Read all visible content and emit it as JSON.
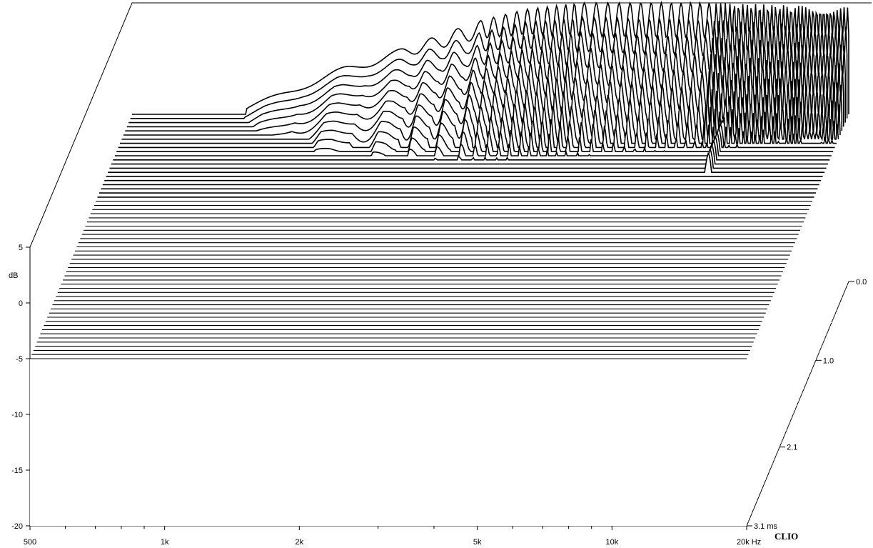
{
  "chart_data": {
    "type": "area",
    "subtype": "waterfall",
    "brand": "CLIO",
    "z_axis": {
      "label": "dB",
      "ylim": [
        -20,
        5
      ],
      "ticks": [
        {
          "value": 5,
          "label": "5"
        },
        {
          "value": 0,
          "label": "0"
        },
        {
          "value": -5,
          "label": "-5"
        },
        {
          "value": -10,
          "label": "-10"
        },
        {
          "value": -15,
          "label": "-15"
        },
        {
          "value": -20,
          "label": "-20"
        }
      ]
    },
    "x_axis": {
      "scale": "log",
      "range_hz": [
        500,
        20000
      ],
      "ticks": [
        {
          "value": 500,
          "label": "500"
        },
        {
          "value": 1000,
          "label": "1k"
        },
        {
          "value": 2000,
          "label": "2k"
        },
        {
          "value": 5000,
          "label": "5k"
        },
        {
          "value": 10000,
          "label": "10k"
        },
        {
          "value": 20000,
          "label": "20k Hz"
        }
      ],
      "minor_ticks": [
        600,
        700,
        800,
        900,
        3000,
        4000,
        6000,
        7000,
        8000,
        9000
      ]
    },
    "time_axis": {
      "range_ms": [
        0.0,
        3.1
      ],
      "ticks": [
        {
          "value": 0.0,
          "label": "0.0"
        },
        {
          "value": 1.0,
          "label": "1.0"
        },
        {
          "value": 2.1,
          "label": "2.1"
        },
        {
          "value": 3.1,
          "label": "3.1  ms"
        }
      ]
    },
    "slices": 60,
    "lower_cut_hz": 900,
    "floor_db": -5,
    "decay_model": {
      "envelope": [
        [
          900,
          -4.5
        ],
        [
          1200,
          -2.5
        ],
        [
          1500,
          -1
        ],
        [
          2000,
          0.5
        ],
        [
          3000,
          2.6
        ],
        [
          3800,
          3.3
        ],
        [
          5000,
          3.5
        ],
        [
          10000,
          3.4
        ],
        [
          20000,
          3.2
        ]
      ],
      "ripple_depth_db": [
        [
          900,
          0.2
        ],
        [
          2000,
          0.4
        ],
        [
          3000,
          0.8
        ],
        [
          5000,
          1.5
        ],
        [
          10000,
          1.6
        ],
        [
          20000,
          1.4
        ]
      ],
      "ripple_cycles_per_octave": [
        [
          900,
          1.5
        ],
        [
          2000,
          2
        ],
        [
          3000,
          3
        ],
        [
          5000,
          6
        ],
        [
          10000,
          8
        ],
        [
          20000,
          14
        ]
      ],
      "decay_db_per_ms": [
        [
          900,
          6
        ],
        [
          1500,
          8
        ],
        [
          3000,
          14
        ],
        [
          5000,
          18
        ],
        [
          10000,
          22
        ],
        [
          20000,
          25
        ]
      ],
      "late_resonances": [
        {
          "freq_hz": 6500,
          "width_oct": 0.025,
          "level_db": -6.5,
          "until_ms": 1.2
        },
        {
          "freq_hz": 11000,
          "width_oct": 0.02,
          "level_db": -4.8,
          "until_ms": 0.75
        }
      ]
    }
  }
}
